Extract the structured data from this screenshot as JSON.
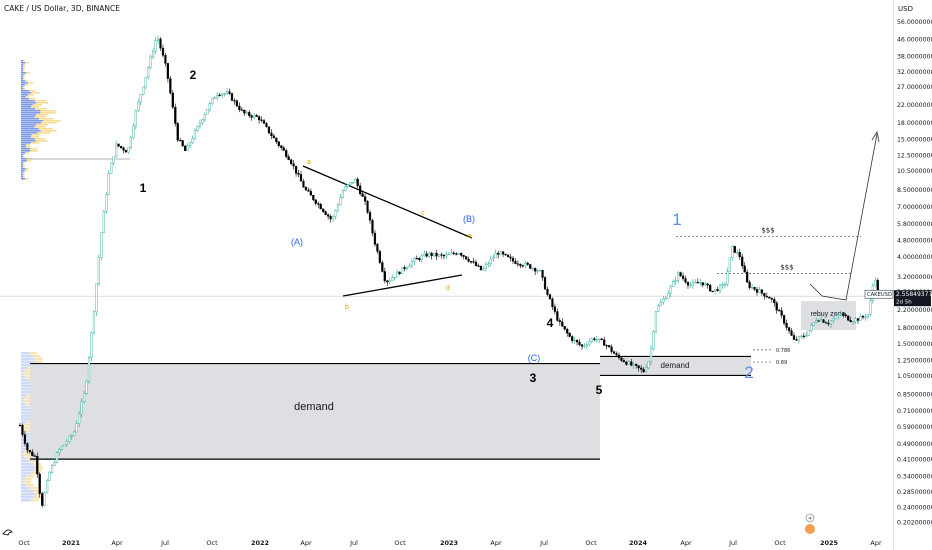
{
  "header": {
    "title": "CAKE / US Dollar, 3D, BINANCE",
    "currency": "USD"
  },
  "chart_data": {
    "type": "candlestick",
    "title": "CAKE / US Dollar, 3D, BINANCE",
    "y_scale": "log",
    "ylim": [
      0.2,
      57
    ],
    "y_ticks": [
      "56.00000000",
      "46.00000000",
      "38.00000000",
      "32.00000000",
      "27.00000000",
      "22.00000000",
      "18.00000000",
      "15.00000000",
      "12.50000000",
      "10.50000000",
      "8.50000000",
      "7.00000000",
      "5.80000000",
      "4.80000000",
      "4.00000000",
      "3.20000000",
      "2.70000000",
      "2.20000000",
      "1.80000000",
      "1.50000000",
      "1.25000000",
      "1.05000000",
      "0.85000000",
      "0.71000000",
      "0.59000000",
      "0.49000000",
      "0.41000000",
      "0.34000000",
      "0.28500000",
      "0.24000000",
      "0.20200000"
    ],
    "x_ticks": [
      "Oct",
      "2021",
      "Apr",
      "Jul",
      "Oct",
      "2022",
      "Apr",
      "Jul",
      "Oct",
      "2023",
      "Apr",
      "Jul",
      "Oct",
      "2024",
      "Apr",
      "Jul",
      "Oct",
      "2025",
      "Apr"
    ],
    "price_label": {
      "symbol": "CAKEUSD",
      "value": "2.55849377",
      "countdown": "2d 5h",
      "price": 2.558
    },
    "price_path": [
      [
        0.0,
        0.6
      ],
      [
        0.01,
        0.45
      ],
      [
        0.02,
        0.42
      ],
      [
        0.028,
        0.24
      ],
      [
        0.038,
        0.35
      ],
      [
        0.05,
        0.45
      ],
      [
        0.07,
        0.55
      ],
      [
        0.085,
        0.9
      ],
      [
        0.095,
        2.0
      ],
      [
        0.105,
        5.0
      ],
      [
        0.115,
        10.0
      ],
      [
        0.125,
        14.0
      ],
      [
        0.14,
        13.0
      ],
      [
        0.15,
        20.0
      ],
      [
        0.165,
        32.0
      ],
      [
        0.178,
        48.0
      ],
      [
        0.19,
        33.0
      ],
      [
        0.205,
        15.0
      ],
      [
        0.215,
        13.0
      ],
      [
        0.225,
        15.5
      ],
      [
        0.24,
        20.0
      ],
      [
        0.255,
        25.0
      ],
      [
        0.27,
        25.0
      ],
      [
        0.29,
        20.0
      ],
      [
        0.31,
        19.0
      ],
      [
        0.33,
        15.0
      ],
      [
        0.35,
        12.0
      ],
      [
        0.37,
        8.5
      ],
      [
        0.39,
        7.0
      ],
      [
        0.405,
        6.0
      ],
      [
        0.42,
        8.5
      ],
      [
        0.435,
        9.5
      ],
      [
        0.45,
        7.0
      ],
      [
        0.46,
        4.8
      ],
      [
        0.475,
        3.0
      ],
      [
        0.49,
        3.3
      ],
      [
        0.51,
        3.8
      ],
      [
        0.53,
        4.1
      ],
      [
        0.55,
        4.0
      ],
      [
        0.57,
        4.2
      ],
      [
        0.585,
        3.8
      ],
      [
        0.6,
        3.4
      ],
      [
        0.62,
        4.2
      ],
      [
        0.64,
        3.8
      ],
      [
        0.66,
        3.6
      ],
      [
        0.675,
        3.4
      ],
      [
        0.685,
        2.6
      ],
      [
        0.7,
        1.9
      ],
      [
        0.715,
        1.6
      ],
      [
        0.73,
        1.45
      ],
      [
        0.745,
        1.6
      ],
      [
        0.76,
        1.5
      ],
      [
        0.775,
        1.3
      ],
      [
        0.79,
        1.2
      ],
      [
        0.8,
        1.15
      ],
      [
        0.81,
        1.1
      ],
      [
        0.818,
        1.28
      ],
      [
        0.826,
        2.2
      ],
      [
        0.84,
        2.6
      ],
      [
        0.855,
        3.3
      ],
      [
        0.87,
        2.9
      ],
      [
        0.885,
        3.0
      ],
      [
        0.9,
        2.7
      ],
      [
        0.915,
        2.9
      ],
      [
        0.925,
        4.4
      ],
      [
        0.935,
        4.0
      ],
      [
        0.945,
        2.9
      ],
      [
        0.96,
        2.7
      ],
      [
        0.975,
        2.5
      ],
      [
        0.99,
        2.0
      ],
      [
        1.005,
        1.55
      ],
      [
        1.02,
        1.65
      ],
      [
        1.035,
        2.0
      ],
      [
        1.05,
        1.9
      ],
      [
        1.065,
        2.1
      ],
      [
        1.08,
        1.95
      ],
      [
        1.092,
        2.0
      ],
      [
        1.102,
        2.1
      ],
      [
        1.11,
        3.3
      ],
      [
        1.114,
        2.56
      ]
    ],
    "annotations": [
      {
        "text": "1",
        "color": "#000000"
      },
      {
        "text": "2",
        "color": "#000000"
      },
      {
        "text": "3",
        "color": "#000000"
      },
      {
        "text": "4",
        "color": "#000000"
      },
      {
        "text": "5",
        "color": "#000000"
      },
      {
        "text": "(A)",
        "color": "#2962ff"
      },
      {
        "text": "(B)",
        "color": "#2962ff"
      },
      {
        "text": "(C)",
        "color": "#2962ff"
      },
      {
        "text": "1",
        "color": "#5b8def"
      },
      {
        "text": "2",
        "color": "#5b8def"
      },
      {
        "text": "a",
        "color": "#e6a000"
      },
      {
        "text": "b",
        "color": "#e6a000"
      },
      {
        "text": "c",
        "color": "#e6a000"
      },
      {
        "text": "d",
        "color": "#e6a000"
      },
      {
        "text": "e",
        "color": "#e6a000"
      }
    ],
    "zones": [
      {
        "label": "demand",
        "low": 0.41,
        "high": 1.2
      },
      {
        "label": "demand",
        "low": 1.05,
        "high": 1.3
      },
      {
        "label": "rebuy zone",
        "low": 1.75,
        "high": 2.42
      }
    ],
    "levels": [
      {
        "label": "$$$",
        "price": 5.0
      },
      {
        "label": "$$$",
        "price": 3.3
      },
      {
        "label": "0.786",
        "price": 1.4
      },
      {
        "label": "0.89",
        "price": 1.22
      }
    ]
  },
  "colors": {
    "up": "#26a69a",
    "down": "#000000",
    "zone": "#dedfe2",
    "vp_up": "#f7d78a",
    "vp_down": "#6f8fe8",
    "accent_blue": "#2962ff"
  }
}
